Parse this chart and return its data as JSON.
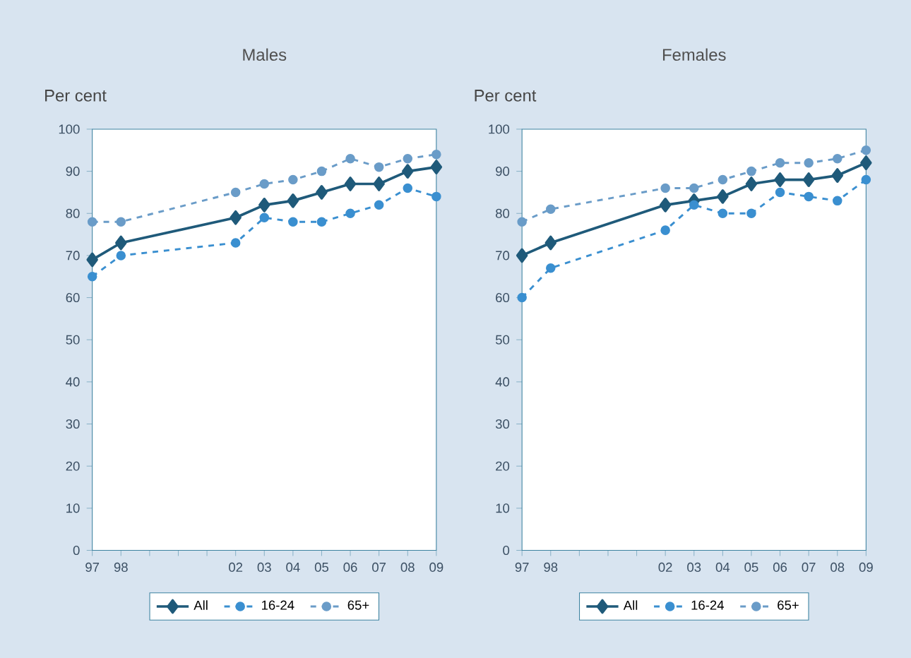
{
  "chart_data": [
    {
      "type": "line",
      "title": "Males",
      "ylabel": "Per cent",
      "x": [
        1997,
        1998,
        2002,
        2003,
        2004,
        2005,
        2006,
        2007,
        2008,
        2009
      ],
      "xlim": [
        1997,
        2009
      ],
      "xticks": [
        {
          "value": 1997,
          "label": "97"
        },
        {
          "value": 1998,
          "label": "98"
        },
        {
          "value": 1999,
          "label": null
        },
        {
          "value": 2000,
          "label": null
        },
        {
          "value": 2001,
          "label": null
        },
        {
          "value": 2002,
          "label": "02"
        },
        {
          "value": 2003,
          "label": "03"
        },
        {
          "value": 2004,
          "label": "04"
        },
        {
          "value": 2005,
          "label": "05"
        },
        {
          "value": 2006,
          "label": "06"
        },
        {
          "value": 2007,
          "label": "07"
        },
        {
          "value": 2008,
          "label": "08"
        },
        {
          "value": 2009,
          "label": "09"
        }
      ],
      "ylim": [
        0,
        100
      ],
      "yticks": [
        0,
        10,
        20,
        30,
        40,
        50,
        60,
        70,
        80,
        90,
        100
      ],
      "legend": "bottom",
      "series": [
        {
          "name": "All",
          "color": "#1f5a7a",
          "marker": "diamond",
          "line_style": "solid",
          "values": [
            69,
            73,
            79,
            82,
            83,
            85,
            87,
            87,
            90,
            91
          ]
        },
        {
          "name": "16-24",
          "color": "#3a8fd0",
          "marker": "circle",
          "line_style": "dashed",
          "values": [
            65,
            70,
            73,
            79,
            78,
            78,
            80,
            82,
            86,
            84
          ]
        },
        {
          "name": "65+",
          "color": "#6a9cc8",
          "marker": "circle",
          "line_style": "dashed",
          "values": [
            78,
            78,
            85,
            87,
            88,
            90,
            93,
            91,
            93,
            94
          ]
        }
      ]
    },
    {
      "type": "line",
      "title": "Females",
      "ylabel": "Per cent",
      "x": [
        1997,
        1998,
        2002,
        2003,
        2004,
        2005,
        2006,
        2007,
        2008,
        2009
      ],
      "xlim": [
        1997,
        2009
      ],
      "xticks": [
        {
          "value": 1997,
          "label": "97"
        },
        {
          "value": 1998,
          "label": "98"
        },
        {
          "value": 1999,
          "label": null
        },
        {
          "value": 2000,
          "label": null
        },
        {
          "value": 2001,
          "label": null
        },
        {
          "value": 2002,
          "label": "02"
        },
        {
          "value": 2003,
          "label": "03"
        },
        {
          "value": 2004,
          "label": "04"
        },
        {
          "value": 2005,
          "label": "05"
        },
        {
          "value": 2006,
          "label": "06"
        },
        {
          "value": 2007,
          "label": "07"
        },
        {
          "value": 2008,
          "label": "08"
        },
        {
          "value": 2009,
          "label": "09"
        }
      ],
      "ylim": [
        0,
        100
      ],
      "yticks": [
        0,
        10,
        20,
        30,
        40,
        50,
        60,
        70,
        80,
        90,
        100
      ],
      "legend": "bottom",
      "series": [
        {
          "name": "All",
          "color": "#1f5a7a",
          "marker": "diamond",
          "line_style": "solid",
          "values": [
            70,
            73,
            82,
            83,
            84,
            87,
            88,
            88,
            89,
            92
          ]
        },
        {
          "name": "16-24",
          "color": "#3a8fd0",
          "marker": "circle",
          "line_style": "dashed",
          "values": [
            60,
            67,
            76,
            82,
            80,
            80,
            85,
            84,
            83,
            88
          ]
        },
        {
          "name": "65+",
          "color": "#6a9cc8",
          "marker": "circle",
          "line_style": "dashed",
          "values": [
            78,
            81,
            86,
            86,
            88,
            90,
            92,
            92,
            93,
            95
          ]
        }
      ]
    }
  ]
}
